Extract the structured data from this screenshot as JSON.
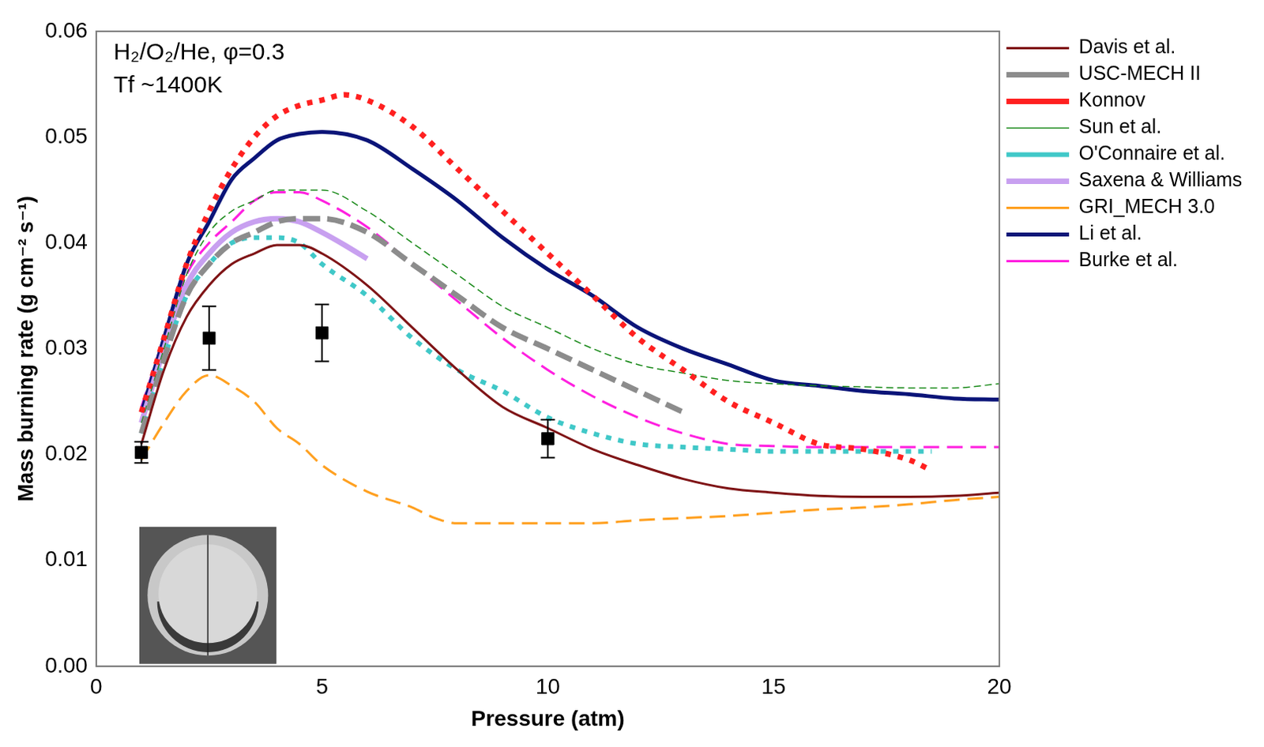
{
  "chart_data": {
    "type": "line",
    "annotations": [
      "H₂/O₂/He, φ=0.3",
      "Tf ~1400K"
    ],
    "x_label": "Pressure (atm)",
    "y_label": "Mass burning rate (g cm⁻² s⁻¹)",
    "xlim": [
      0,
      20
    ],
    "ylim": [
      0,
      0.06
    ],
    "xticks": [
      0,
      5,
      10,
      15,
      20
    ],
    "yticks": [
      {
        "value": 0,
        "label": "0.00"
      },
      0.01,
      0.02,
      0.03,
      0.04,
      0.05,
      0.06
    ],
    "grid": false,
    "legend": "right",
    "series": [
      {
        "name": "Davis et al.",
        "color": "#7f1416",
        "line_style": "solid",
        "x": [
          1,
          1.5,
          2,
          2.5,
          3,
          3.5,
          4,
          4.5,
          5,
          6,
          7,
          8,
          9,
          10,
          11,
          12,
          13,
          14,
          15,
          16,
          17,
          18,
          19,
          20
        ],
        "values": [
          0.021,
          0.028,
          0.033,
          0.036,
          0.038,
          0.039,
          0.0398,
          0.0398,
          0.039,
          0.036,
          0.032,
          0.028,
          0.0245,
          0.0225,
          0.0205,
          0.019,
          0.0177,
          0.0168,
          0.0164,
          0.0161,
          0.016,
          0.016,
          0.0161,
          0.0164
        ]
      },
      {
        "name": "USC-MECH II",
        "color": "#8c8c8c",
        "line_style": "dashed",
        "x": [
          1,
          1.5,
          2,
          2.5,
          3,
          3.5,
          4,
          4.5,
          5,
          6,
          7,
          8,
          9,
          10,
          11,
          12,
          13
        ],
        "values": [
          0.022,
          0.029,
          0.035,
          0.038,
          0.04,
          0.041,
          0.042,
          0.0423,
          0.0423,
          0.041,
          0.038,
          0.035,
          0.032,
          0.03,
          0.028,
          0.026,
          0.024
        ]
      },
      {
        "name": "Konnov",
        "color": "#ff2020",
        "line_style": "dotted",
        "x": [
          1,
          1.5,
          2,
          2.5,
          3,
          3.5,
          4,
          4.5,
          5,
          5.5,
          6,
          7,
          8,
          9,
          10,
          11,
          12,
          13,
          14,
          15,
          16,
          17,
          18,
          18.5
        ],
        "values": [
          0.024,
          0.031,
          0.038,
          0.043,
          0.047,
          0.05,
          0.052,
          0.053,
          0.0535,
          0.054,
          0.0535,
          0.051,
          0.047,
          0.043,
          0.039,
          0.035,
          0.031,
          0.028,
          0.025,
          0.023,
          0.021,
          0.0205,
          0.0195,
          0.0185
        ]
      },
      {
        "name": "Sun et al.",
        "color": "#1a8a1a",
        "line_style": "dashed",
        "x": [
          1,
          1.5,
          2,
          2.5,
          3,
          3.5,
          4,
          4.5,
          5,
          6,
          7,
          8,
          9,
          10,
          11,
          12,
          13,
          14,
          15,
          16,
          17,
          18,
          19,
          20
        ],
        "values": [
          0.023,
          0.03,
          0.037,
          0.041,
          0.043,
          0.044,
          0.045,
          0.045,
          0.045,
          0.043,
          0.04,
          0.037,
          0.034,
          0.032,
          0.03,
          0.0285,
          0.0277,
          0.027,
          0.0267,
          0.0265,
          0.0264,
          0.0263,
          0.0263,
          0.0267
        ]
      },
      {
        "name": "O'Connaire et al.",
        "color": "#40c8c8",
        "line_style": "dotted",
        "x": [
          1,
          1.5,
          2,
          2.5,
          3,
          3.5,
          4,
          4.5,
          5,
          6,
          7,
          8,
          9,
          10,
          11,
          12,
          13,
          14,
          15,
          16,
          17,
          18,
          18.5
        ],
        "values": [
          0.022,
          0.029,
          0.035,
          0.038,
          0.04,
          0.0405,
          0.0405,
          0.04,
          0.038,
          0.035,
          0.031,
          0.028,
          0.026,
          0.0235,
          0.022,
          0.021,
          0.0207,
          0.0205,
          0.0203,
          0.0203,
          0.0203,
          0.0203,
          0.0203
        ]
      },
      {
        "name": "Saxena & Williams",
        "color": "#c8a0f0",
        "line_style": "solid",
        "x": [
          1,
          1.5,
          2,
          2.5,
          3,
          3.5,
          4,
          4.5,
          5,
          5.5,
          6
        ],
        "values": [
          0.023,
          0.03,
          0.036,
          0.039,
          0.041,
          0.042,
          0.0423,
          0.042,
          0.041,
          0.0398,
          0.0385
        ]
      },
      {
        "name": "GRI_MECH 3.0",
        "color": "#ffa020",
        "line_style": "dashed",
        "x": [
          1,
          1.5,
          2,
          2.5,
          3,
          3.5,
          4,
          4.5,
          5,
          6,
          7,
          7.5,
          8,
          9,
          10,
          11,
          12,
          13,
          14,
          15,
          16,
          17,
          18,
          19,
          20
        ],
        "values": [
          0.0195,
          0.023,
          0.026,
          0.0275,
          0.0265,
          0.025,
          0.0225,
          0.021,
          0.019,
          0.0165,
          0.015,
          0.014,
          0.0135,
          0.0135,
          0.0135,
          0.0135,
          0.0138,
          0.014,
          0.0142,
          0.0145,
          0.0148,
          0.015,
          0.0153,
          0.0157,
          0.016
        ]
      },
      {
        "name": "Li et al.",
        "color": "#0a1478",
        "line_style": "solid",
        "x": [
          1,
          1.5,
          2,
          2.5,
          3,
          3.5,
          4,
          4.5,
          5,
          6,
          7,
          8,
          9,
          10,
          11,
          12,
          13,
          14,
          15,
          16,
          17,
          18,
          19,
          20
        ],
        "values": [
          0.024,
          0.031,
          0.038,
          0.042,
          0.046,
          0.048,
          0.0497,
          0.0503,
          0.0505,
          0.0497,
          0.047,
          0.044,
          0.0405,
          0.0375,
          0.035,
          0.032,
          0.03,
          0.0285,
          0.027,
          0.0265,
          0.026,
          0.0257,
          0.0253,
          0.0252
        ]
      },
      {
        "name": "Burke et al.",
        "color": "#ff20e0",
        "line_style": "dashed",
        "x": [
          1,
          1.5,
          2,
          2.5,
          3,
          3.5,
          4,
          4.5,
          5,
          6,
          7,
          8,
          9,
          10,
          11,
          12,
          13,
          14,
          15,
          16,
          17,
          18,
          19,
          20
        ],
        "values": [
          0.0245,
          0.031,
          0.037,
          0.04,
          0.042,
          0.044,
          0.0448,
          0.0448,
          0.044,
          0.0415,
          0.038,
          0.0345,
          0.031,
          0.028,
          0.0255,
          0.0235,
          0.022,
          0.021,
          0.0208,
          0.0207,
          0.0207,
          0.0207,
          0.0207,
          0.0207
        ]
      },
      {
        "color": "#000000",
        "type": "scatter",
        "marker": "square",
        "x": [
          1,
          2.5,
          5,
          10
        ],
        "values": [
          0.0202,
          0.031,
          0.0315,
          0.0215
        ],
        "errors": [
          0.001,
          0.003,
          0.0027,
          0.0018
        ]
      }
    ]
  }
}
